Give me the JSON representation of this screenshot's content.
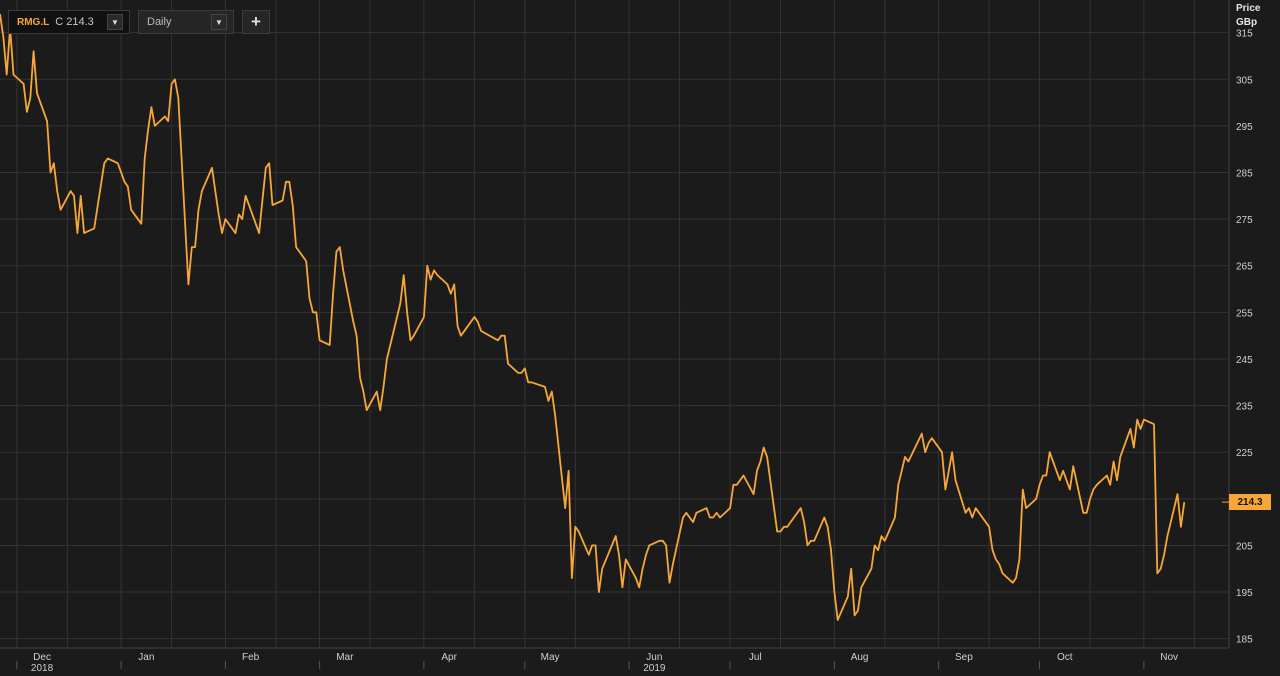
{
  "toolbar": {
    "symbol": "RMG.L",
    "symbol_value": "C 214.3",
    "interval": "Daily",
    "add_label": "+"
  },
  "axis": {
    "unit_line1": "Price",
    "unit_line2": "GBp",
    "last_value": "214.3"
  },
  "colors": {
    "background": "#1b1b1b",
    "grid": "#333333",
    "line": "#f7a738",
    "text": "#d0d0d0"
  },
  "chart_data": {
    "type": "line",
    "title": "",
    "xlabel": "",
    "ylabel": "Price GBp",
    "grid": true,
    "legend": "none",
    "ylim": [
      183,
      322
    ],
    "yticks": [
      185,
      195,
      205,
      215,
      225,
      235,
      245,
      255,
      265,
      275,
      285,
      295,
      305,
      315
    ],
    "ytick_labels": [
      "185",
      "195",
      "205",
      "215",
      "225",
      "235",
      "245",
      "255",
      "265",
      "275",
      "285",
      "295",
      "305",
      "315"
    ],
    "xlim": [
      "2018-11-26",
      "2019-11-26"
    ],
    "x_month_ticks": [
      {
        "label": "Dec",
        "date": "2018-12-01",
        "year": "2018"
      },
      {
        "label": "Jan",
        "date": "2019-01-01"
      },
      {
        "label": "Feb",
        "date": "2019-02-01"
      },
      {
        "label": "Mar",
        "date": "2019-03-01"
      },
      {
        "label": "Apr",
        "date": "2019-04-01"
      },
      {
        "label": "May",
        "date": "2019-05-01"
      },
      {
        "label": "Jun",
        "date": "2019-06-01",
        "year": "2019"
      },
      {
        "label": "Jul",
        "date": "2019-07-01"
      },
      {
        "label": "Aug",
        "date": "2019-08-01"
      },
      {
        "label": "Sep",
        "date": "2019-09-01"
      },
      {
        "label": "Oct",
        "date": "2019-10-01"
      },
      {
        "label": "Nov",
        "date": "2019-11-01"
      }
    ],
    "series": [
      {
        "values": [
          [
            "2018-11-26",
            319
          ],
          [
            "2018-11-27",
            314
          ],
          [
            "2018-11-28",
            306
          ],
          [
            "2018-11-29",
            316
          ],
          [
            "2018-11-30",
            306
          ],
          [
            "2018-12-03",
            304
          ],
          [
            "2018-12-04",
            298
          ],
          [
            "2018-12-05",
            301
          ],
          [
            "2018-12-06",
            311
          ],
          [
            "2018-12-07",
            302
          ],
          [
            "2018-12-10",
            296
          ],
          [
            "2018-12-11",
            285
          ],
          [
            "2018-12-12",
            287
          ],
          [
            "2018-12-13",
            281
          ],
          [
            "2018-12-14",
            277
          ],
          [
            "2018-12-17",
            281
          ],
          [
            "2018-12-18",
            280
          ],
          [
            "2018-12-19",
            272
          ],
          [
            "2018-12-20",
            280
          ],
          [
            "2018-12-21",
            272
          ],
          [
            "2018-12-24",
            273
          ],
          [
            "2018-12-27",
            287
          ],
          [
            "2018-12-28",
            288
          ],
          [
            "2018-12-31",
            287
          ],
          [
            "2019-01-02",
            283
          ],
          [
            "2019-01-03",
            282
          ],
          [
            "2019-01-04",
            277
          ],
          [
            "2019-01-07",
            274
          ],
          [
            "2019-01-08",
            288
          ],
          [
            "2019-01-09",
            294
          ],
          [
            "2019-01-10",
            299
          ],
          [
            "2019-01-11",
            295
          ],
          [
            "2019-01-14",
            297
          ],
          [
            "2019-01-15",
            296
          ],
          [
            "2019-01-16",
            304
          ],
          [
            "2019-01-17",
            305
          ],
          [
            "2019-01-18",
            301
          ],
          [
            "2019-01-21",
            261
          ],
          [
            "2019-01-22",
            269
          ],
          [
            "2019-01-23",
            269
          ],
          [
            "2019-01-24",
            277
          ],
          [
            "2019-01-25",
            281
          ],
          [
            "2019-01-28",
            286
          ],
          [
            "2019-01-29",
            281
          ],
          [
            "2019-01-30",
            276
          ],
          [
            "2019-01-31",
            272
          ],
          [
            "2019-02-01",
            275
          ],
          [
            "2019-02-04",
            272
          ],
          [
            "2019-02-05",
            276
          ],
          [
            "2019-02-06",
            275
          ],
          [
            "2019-02-07",
            280
          ],
          [
            "2019-02-08",
            278
          ],
          [
            "2019-02-11",
            272
          ],
          [
            "2019-02-12",
            279
          ],
          [
            "2019-02-13",
            286
          ],
          [
            "2019-02-14",
            287
          ],
          [
            "2019-02-15",
            278
          ],
          [
            "2019-02-18",
            279
          ],
          [
            "2019-02-19",
            283
          ],
          [
            "2019-02-20",
            283
          ],
          [
            "2019-02-21",
            278
          ],
          [
            "2019-02-22",
            269
          ],
          [
            "2019-02-25",
            266
          ],
          [
            "2019-02-26",
            258
          ],
          [
            "2019-02-27",
            255
          ],
          [
            "2019-02-28",
            255
          ],
          [
            "2019-03-01",
            249
          ],
          [
            "2019-03-04",
            248
          ],
          [
            "2019-03-05",
            259
          ],
          [
            "2019-03-06",
            268
          ],
          [
            "2019-03-07",
            269
          ],
          [
            "2019-03-08",
            264
          ],
          [
            "2019-03-11",
            253
          ],
          [
            "2019-03-12",
            250
          ],
          [
            "2019-03-13",
            241
          ],
          [
            "2019-03-14",
            238
          ],
          [
            "2019-03-15",
            234
          ],
          [
            "2019-03-18",
            238
          ],
          [
            "2019-03-19",
            234
          ],
          [
            "2019-03-20",
            239
          ],
          [
            "2019-03-21",
            245
          ],
          [
            "2019-03-22",
            248
          ],
          [
            "2019-03-25",
            257
          ],
          [
            "2019-03-26",
            263
          ],
          [
            "2019-03-27",
            255
          ],
          [
            "2019-03-28",
            249
          ],
          [
            "2019-03-29",
            250
          ],
          [
            "2019-04-01",
            254
          ],
          [
            "2019-04-02",
            265
          ],
          [
            "2019-04-03",
            262
          ],
          [
            "2019-04-04",
            264
          ],
          [
            "2019-04-05",
            263
          ],
          [
            "2019-04-08",
            261
          ],
          [
            "2019-04-09",
            259
          ],
          [
            "2019-04-10",
            261
          ],
          [
            "2019-04-11",
            252
          ],
          [
            "2019-04-12",
            250
          ],
          [
            "2019-04-15",
            253
          ],
          [
            "2019-04-16",
            254
          ],
          [
            "2019-04-17",
            253
          ],
          [
            "2019-04-18",
            251
          ],
          [
            "2019-04-23",
            249
          ],
          [
            "2019-04-24",
            250
          ],
          [
            "2019-04-25",
            250
          ],
          [
            "2019-04-26",
            244
          ],
          [
            "2019-04-29",
            242
          ],
          [
            "2019-04-30",
            242
          ],
          [
            "2019-05-01",
            243
          ],
          [
            "2019-05-02",
            240
          ],
          [
            "2019-05-03",
            240
          ],
          [
            "2019-05-07",
            239
          ],
          [
            "2019-05-08",
            236
          ],
          [
            "2019-05-09",
            238
          ],
          [
            "2019-05-10",
            233
          ],
          [
            "2019-05-13",
            213
          ],
          [
            "2019-05-14",
            221
          ],
          [
            "2019-05-15",
            198
          ],
          [
            "2019-05-16",
            209
          ],
          [
            "2019-05-17",
            208
          ],
          [
            "2019-05-20",
            203
          ],
          [
            "2019-05-21",
            205
          ],
          [
            "2019-05-22",
            205
          ],
          [
            "2019-05-23",
            195
          ],
          [
            "2019-05-24",
            200
          ],
          [
            "2019-05-28",
            207
          ],
          [
            "2019-05-29",
            203
          ],
          [
            "2019-05-30",
            196
          ],
          [
            "2019-05-31",
            202
          ],
          [
            "2019-06-03",
            198
          ],
          [
            "2019-06-04",
            196
          ],
          [
            "2019-06-05",
            200
          ],
          [
            "2019-06-06",
            203
          ],
          [
            "2019-06-07",
            205
          ],
          [
            "2019-06-10",
            206
          ],
          [
            "2019-06-11",
            206
          ],
          [
            "2019-06-12",
            205
          ],
          [
            "2019-06-13",
            197
          ],
          [
            "2019-06-14",
            201
          ],
          [
            "2019-06-17",
            211
          ],
          [
            "2019-06-18",
            212
          ],
          [
            "2019-06-19",
            211
          ],
          [
            "2019-06-20",
            210
          ],
          [
            "2019-06-21",
            212
          ],
          [
            "2019-06-24",
            213
          ],
          [
            "2019-06-25",
            211
          ],
          [
            "2019-06-26",
            211
          ],
          [
            "2019-06-27",
            212
          ],
          [
            "2019-06-28",
            211
          ],
          [
            "2019-07-01",
            213
          ],
          [
            "2019-07-02",
            218
          ],
          [
            "2019-07-03",
            218
          ],
          [
            "2019-07-04",
            219
          ],
          [
            "2019-07-05",
            220
          ],
          [
            "2019-07-08",
            216
          ],
          [
            "2019-07-09",
            221
          ],
          [
            "2019-07-10",
            223
          ],
          [
            "2019-07-11",
            226
          ],
          [
            "2019-07-12",
            224
          ],
          [
            "2019-07-15",
            208
          ],
          [
            "2019-07-16",
            208
          ],
          [
            "2019-07-17",
            209
          ],
          [
            "2019-07-18",
            209
          ],
          [
            "2019-07-19",
            210
          ],
          [
            "2019-07-22",
            213
          ],
          [
            "2019-07-23",
            210
          ],
          [
            "2019-07-24",
            205
          ],
          [
            "2019-07-25",
            206
          ],
          [
            "2019-07-26",
            206
          ],
          [
            "2019-07-29",
            211
          ],
          [
            "2019-07-30",
            209
          ],
          [
            "2019-07-31",
            204
          ],
          [
            "2019-08-01",
            195
          ],
          [
            "2019-08-02",
            189
          ],
          [
            "2019-08-05",
            194
          ],
          [
            "2019-08-06",
            200
          ],
          [
            "2019-08-07",
            190
          ],
          [
            "2019-08-08",
            191
          ],
          [
            "2019-08-09",
            196
          ],
          [
            "2019-08-12",
            200
          ],
          [
            "2019-08-13",
            205
          ],
          [
            "2019-08-14",
            204
          ],
          [
            "2019-08-15",
            207
          ],
          [
            "2019-08-16",
            206
          ],
          [
            "2019-08-19",
            211
          ],
          [
            "2019-08-20",
            218
          ],
          [
            "2019-08-21",
            221
          ],
          [
            "2019-08-22",
            224
          ],
          [
            "2019-08-23",
            223
          ],
          [
            "2019-08-27",
            229
          ],
          [
            "2019-08-28",
            225
          ],
          [
            "2019-08-29",
            227
          ],
          [
            "2019-08-30",
            228
          ],
          [
            "2019-09-02",
            225
          ],
          [
            "2019-09-03",
            217
          ],
          [
            "2019-09-04",
            221
          ],
          [
            "2019-09-05",
            225
          ],
          [
            "2019-09-06",
            219
          ],
          [
            "2019-09-09",
            212
          ],
          [
            "2019-09-10",
            213
          ],
          [
            "2019-09-11",
            211
          ],
          [
            "2019-09-12",
            213
          ],
          [
            "2019-09-13",
            212
          ],
          [
            "2019-09-16",
            209
          ],
          [
            "2019-09-17",
            204
          ],
          [
            "2019-09-18",
            202
          ],
          [
            "2019-09-19",
            201
          ],
          [
            "2019-09-20",
            199
          ],
          [
            "2019-09-23",
            197
          ],
          [
            "2019-09-24",
            198
          ],
          [
            "2019-09-25",
            202
          ],
          [
            "2019-09-26",
            217
          ],
          [
            "2019-09-27",
            213
          ],
          [
            "2019-09-30",
            215
          ],
          [
            "2019-10-01",
            218
          ],
          [
            "2019-10-02",
            220
          ],
          [
            "2019-10-03",
            220
          ],
          [
            "2019-10-04",
            225
          ],
          [
            "2019-10-07",
            219
          ],
          [
            "2019-10-08",
            221
          ],
          [
            "2019-10-09",
            219
          ],
          [
            "2019-10-10",
            217
          ],
          [
            "2019-10-11",
            222
          ],
          [
            "2019-10-14",
            212
          ],
          [
            "2019-10-15",
            212
          ],
          [
            "2019-10-16",
            215
          ],
          [
            "2019-10-17",
            217
          ],
          [
            "2019-10-18",
            218
          ],
          [
            "2019-10-21",
            220
          ],
          [
            "2019-10-22",
            218
          ],
          [
            "2019-10-23",
            223
          ],
          [
            "2019-10-24",
            219
          ],
          [
            "2019-10-25",
            224
          ],
          [
            "2019-10-28",
            230
          ],
          [
            "2019-10-29",
            226
          ],
          [
            "2019-10-30",
            232
          ],
          [
            "2019-10-31",
            230
          ],
          [
            "2019-11-01",
            232
          ],
          [
            "2019-11-04",
            231
          ],
          [
            "2019-11-05",
            199
          ],
          [
            "2019-11-06",
            200
          ],
          [
            "2019-11-07",
            203
          ],
          [
            "2019-11-08",
            207
          ],
          [
            "2019-11-11",
            216
          ],
          [
            "2019-11-12",
            209
          ],
          [
            "2019-11-13",
            214.3
          ]
        ]
      }
    ]
  }
}
